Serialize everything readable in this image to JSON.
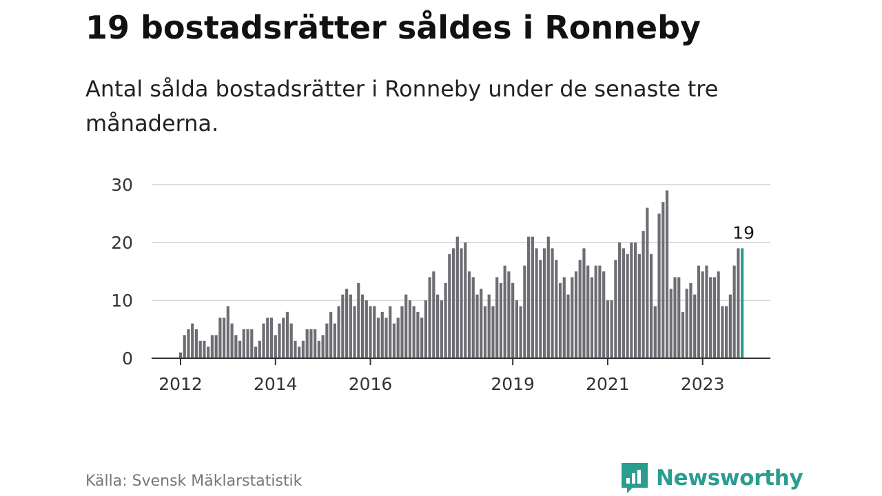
{
  "header": {
    "title": "19 bostadsrätter såldes i Ronneby",
    "subtitle": "Antal sålda bostadsrätter i Ronneby under de senaste tre månaderna."
  },
  "footer": {
    "source": "Källa: Svensk Mäklarstatistik",
    "brand": "Newsworthy",
    "brand_icon": "newsworthy-logo-icon"
  },
  "colors": {
    "bar": "#6d6d73",
    "highlight": "#2a9d8f",
    "grid": "#dddddd",
    "axis": "#333333",
    "brand": "#2a9d8f"
  },
  "chart_data": {
    "type": "bar",
    "x_start": "2012-01",
    "x_interval": "month",
    "values": [
      1,
      4,
      5,
      6,
      5,
      3,
      3,
      2,
      4,
      4,
      7,
      7,
      9,
      6,
      4,
      3,
      5,
      5,
      5,
      2,
      3,
      6,
      7,
      7,
      4,
      6,
      7,
      8,
      6,
      3,
      2,
      3,
      5,
      5,
      5,
      3,
      4,
      6,
      8,
      6,
      9,
      11,
      12,
      11,
      9,
      13,
      11,
      10,
      9,
      9,
      7,
      8,
      7,
      9,
      6,
      7,
      9,
      11,
      10,
      9,
      8,
      7,
      10,
      14,
      15,
      11,
      10,
      13,
      18,
      19,
      21,
      19,
      20,
      15,
      14,
      11,
      12,
      9,
      11,
      9,
      14,
      13,
      16,
      15,
      13,
      10,
      9,
      16,
      21,
      21,
      19,
      17,
      19,
      21,
      19,
      17,
      13,
      14,
      11,
      14,
      15,
      17,
      19,
      16,
      14,
      16,
      16,
      15,
      10,
      10,
      17,
      20,
      19,
      18,
      20,
      20,
      18,
      22,
      26,
      18,
      9,
      25,
      27,
      29,
      12,
      14,
      14,
      8,
      12,
      13,
      11,
      16,
      15,
      16,
      14,
      14,
      15,
      9,
      9,
      11,
      16,
      19,
      19
    ],
    "highlight_last": 1,
    "highlight_label": "19",
    "x_tick_labels": [
      "2012",
      "2014",
      "2016",
      "2019",
      "2021",
      "2023"
    ],
    "y_ticks": [
      "0",
      "10",
      "20",
      "30"
    ],
    "ylim": [
      0,
      30
    ],
    "grid": true,
    "legend": "none"
  }
}
